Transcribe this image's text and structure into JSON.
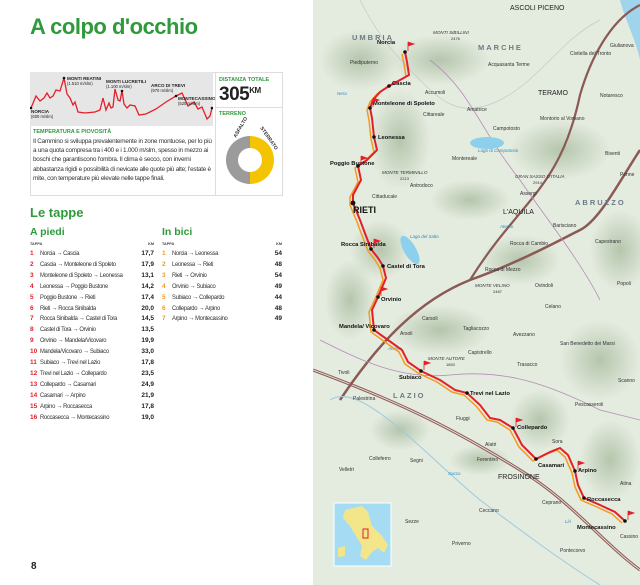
{
  "title": "A colpo d'occhio",
  "profile": {
    "points": [
      {
        "name": "NORCIA",
        "elev": "(600 m/slm)"
      },
      {
        "name": "MONTI REATINI",
        "elev": "(1.510 m/slm)"
      },
      {
        "name": "MONTI LUCRETILI",
        "elev": "(1.100 m/slm)"
      },
      {
        "name": "ARCO DI TREVI",
        "elev": "(970 m/slm)"
      },
      {
        "name": "MONTECASSINO",
        "elev": "(520 m/slm)"
      }
    ],
    "line_color": "#e3202a"
  },
  "distance": {
    "label": "DISTANZA TOTALE",
    "value": "305",
    "unit": "KM"
  },
  "terrain": {
    "label": "TERRENO",
    "segments": [
      {
        "name": "ASFALTO",
        "percent": 50,
        "color": "#9b9b9b"
      },
      {
        "name": "STERRATO",
        "percent": 50,
        "color": "#f5c400"
      }
    ]
  },
  "climate": {
    "heading": "TEMPERATURA E PIOVOSITÀ",
    "text": "Il Cammino si sviluppa prevalentemente in zone montuose, per lo più a una quota compresa tra i 400 e i 1.000 m/slm, spesso in mezzo ai boschi che garantiscono l'ombra. Il clima è secco, con inverni abbastanza rigidi e possibilità di nevicate alle quote più alte; l'estate è mite, con temperature più elevate nelle tappe finali."
  },
  "tappe": {
    "heading": "Le tappe",
    "piedi": {
      "heading": "A piedi",
      "col_tappa": "TAPPA",
      "col_km": "KM",
      "number_color": "#e3202a",
      "rows": [
        {
          "n": "1",
          "route": "Norcia → Cascia",
          "km": "17,7"
        },
        {
          "n": "2",
          "route": "Cascia → Monteleone di Spoleto",
          "km": "17,9"
        },
        {
          "n": "3",
          "route": "Monteleone di Spoleto → Leonessa",
          "km": "13,1"
        },
        {
          "n": "4",
          "route": "Leonessa → Poggio Bustone",
          "km": "14,2"
        },
        {
          "n": "5",
          "route": "Poggio Bustone → Rieti",
          "km": "17,4"
        },
        {
          "n": "6",
          "route": "Rieti → Rocca Sinibalda",
          "km": "20,0"
        },
        {
          "n": "7",
          "route": "Rocca Sinibalda → Castel di Tora",
          "km": "14,5"
        },
        {
          "n": "8",
          "route": "Castel di Tora → Orvinio",
          "km": "13,5"
        },
        {
          "n": "9",
          "route": "Orvinio → Mandela/Vicovaro",
          "km": "19,9"
        },
        {
          "n": "10",
          "route": "Mandela/Vicovaro → Subiaco",
          "km": "33,0"
        },
        {
          "n": "11",
          "route": "Subiaco → Trevi nel Lazio",
          "km": "17,8"
        },
        {
          "n": "12",
          "route": "Trevi nel Lazio → Collepardo",
          "km": "23,5"
        },
        {
          "n": "13",
          "route": "Collepardo → Casamari",
          "km": "24,9"
        },
        {
          "n": "14",
          "route": "Casamari → Arpino",
          "km": "21,9"
        },
        {
          "n": "15",
          "route": "Arpino → Roccasecca",
          "km": "17,8"
        },
        {
          "n": "16",
          "route": "Roccasecca → Montecassino",
          "km": "19,0"
        }
      ]
    },
    "bici": {
      "heading": "In bici",
      "col_tappa": "TAPPA",
      "col_km": "KM",
      "number_color": "#f39a1e",
      "rows": [
        {
          "n": "1",
          "route": "Norcia → Leonessa",
          "km": "54"
        },
        {
          "n": "2",
          "route": "Leonessa → Rieti",
          "km": "48"
        },
        {
          "n": "3",
          "route": "Rieti → Orvinio",
          "km": "54"
        },
        {
          "n": "4",
          "route": "Orvinio → Subiaco",
          "km": "49"
        },
        {
          "n": "5",
          "route": "Subiaco → Collepardo",
          "km": "44"
        },
        {
          "n": "6",
          "route": "Collepardo → Arpino",
          "km": "48"
        },
        {
          "n": "7",
          "route": "Arpino → Montecassino",
          "km": "49"
        }
      ]
    }
  },
  "page_number": "8",
  "map": {
    "route_color": "#e3202a",
    "bike_color": "#f39a1e",
    "stops": [
      "Norcia",
      "Cascia",
      "Monteleone di Spoleto",
      "Leonessa",
      "Poggio Bustone",
      "RIETI",
      "Rocca Sinibalda",
      "Castel di Tora",
      "Orvinio",
      "Mandela/ Vicovaro",
      "Subiaco",
      "Trevi nel Lazio",
      "Collepardo",
      "Casamari",
      "Arpino",
      "Roccasecca",
      "Montecassino"
    ],
    "regions": [
      "UMBRIA",
      "MARCHE",
      "ABRUZZO",
      "LAZIO"
    ],
    "cities": [
      "ASCOLI PICENO",
      "TERAMO",
      "L'AQUILA",
      "FROSINONE"
    ],
    "towns": [
      "Piediputerno",
      "Accumoli",
      "Cittareale",
      "Amatrice",
      "Campotosto",
      "Montereale",
      "Antrodoco",
      "Cittaducale",
      "Acquasanta Terme",
      "Civitella del Tronto",
      "Notaresco",
      "Montorio al Vomano",
      "Bisenti",
      "Penne",
      "Assergi",
      "Barisciano",
      "Capestrano",
      "Rocca di Cambio",
      "Rocca di Mezzo",
      "Ovindoli",
      "Popoli",
      "Giulianova",
      "Celano",
      "Carsoli",
      "Tagliacozzo",
      "Avezzano",
      "San Benedetto dei Marsi",
      "Arsoli",
      "Capistrello",
      "Trasacco",
      "Scanno",
      "Tivoli",
      "Palestrina",
      "Pescasseroli",
      "Fiuggi",
      "Alatri",
      "Sora",
      "Colleferro",
      "Segni",
      "Ferentino",
      "Velletri",
      "Ceprano",
      "Ceccano",
      "Atina",
      "Sezze",
      "Priverno",
      "Pontecorvo",
      "Cassino"
    ],
    "mountains": [
      {
        "name": "MONTI SIBILLINI",
        "elev": "2476"
      },
      {
        "name": "MONTE TERMINILLO",
        "elev": "2213"
      },
      {
        "name": "GRAN SASSO D'ITALIA",
        "elev": "2914"
      },
      {
        "name": "MONTE VELINO",
        "elev": "2487"
      },
      {
        "name": "MONTE AUTORE",
        "elev": "1853"
      }
    ],
    "waters": [
      "Lago di Campotosto",
      "Lago del Salto",
      "Nera",
      "Aniene",
      "Sacco",
      "Liri",
      "Aterno"
    ]
  }
}
